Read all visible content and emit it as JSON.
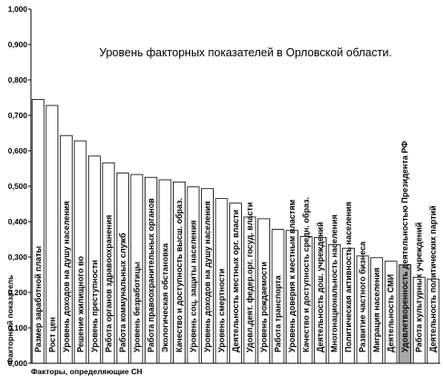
{
  "chart_data": {
    "type": "bar",
    "title": "Уровень факторных показателей в Орловской области.",
    "xlabel": "Факторы, определяющие СН",
    "ylabel": "Факторный показатель",
    "ylim": [
      0,
      1
    ],
    "yticks": [
      "0,000",
      "0,100",
      "0,200",
      "0,300",
      "0,400",
      "0,500",
      "0,600",
      "0,700",
      "0,800",
      "0,900",
      "1,000"
    ],
    "grid": false,
    "legend": "none",
    "colors": {
      "bar": "#ffffff",
      "highlight": "#a8a8a8",
      "stroke": "#000000"
    },
    "categories": [
      "Размер заработной платы",
      "Рост цен",
      "Уровень доходов на душу населения",
      "Решение жилищного во",
      "Уровень преступности",
      "Работа органов здравоохранения",
      "Работа коммунальных служб",
      "Уровень безработицы",
      "Работа правоохранительных органов",
      "Экологическая обстановка",
      "Качество и доступность высш. образ.",
      "Уровень соц. защиты населения",
      "Уровень доходов на душу населения",
      "Уровень смертности",
      "Деятельность местных орг. власти",
      "Удовл.деят. федер.орг. госуд. власти",
      "Уровень рождаемости",
      "Работа транспорта",
      "Уровень доверия к местным властям",
      "Качество и доступность средн. образ.",
      "Деятельность дош. учреждений",
      "Многонациональность населения",
      "Политическая активность населения",
      "Развитие частного бизнеса",
      "Миграция населения",
      "Деятельность СМИ",
      "Удовлетворенность деятельностью Президента РФ",
      "Работа культурных учреждений",
      "Деятельность политических партий"
    ],
    "values": [
      0.745,
      0.728,
      0.643,
      0.628,
      0.585,
      0.566,
      0.537,
      0.533,
      0.525,
      0.518,
      0.512,
      0.498,
      0.493,
      0.465,
      0.452,
      0.413,
      0.408,
      0.378,
      0.375,
      0.358,
      0.355,
      0.335,
      0.325,
      0.303,
      0.298,
      0.288,
      0.278,
      0.243,
      0.238
    ],
    "highlight_index": 26
  }
}
